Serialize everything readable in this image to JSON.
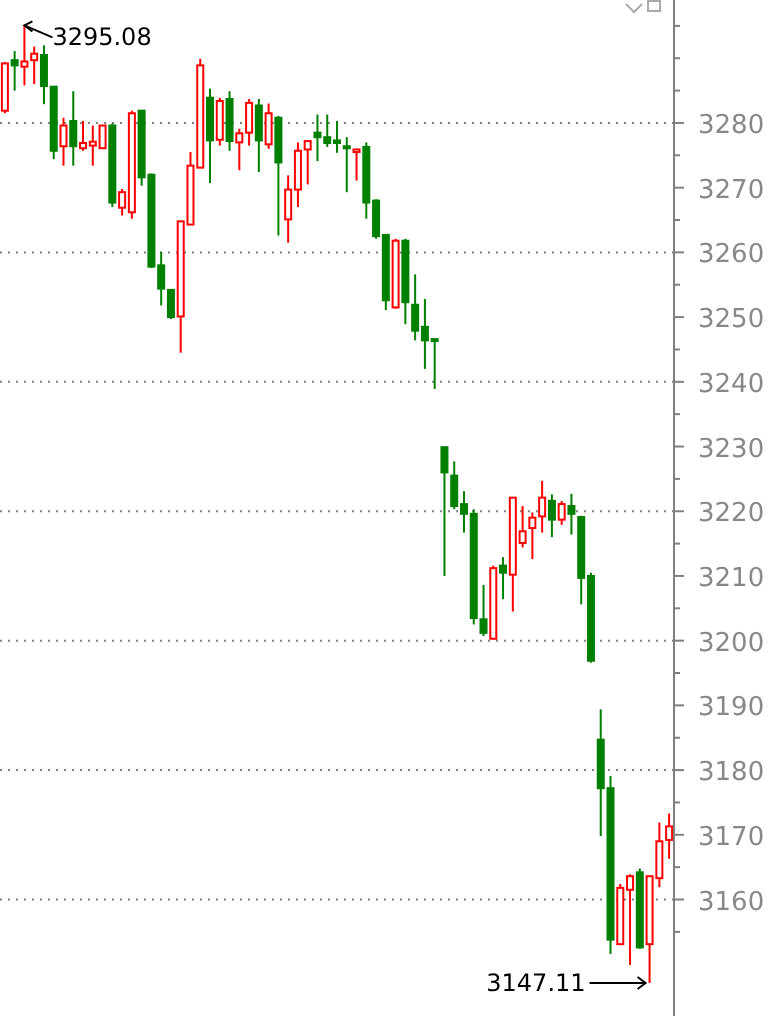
{
  "chart_data": {
    "type": "candlestick",
    "categories": [
      null,
      null,
      null,
      null,
      null,
      null,
      null,
      null,
      null,
      null,
      null,
      null,
      null,
      null,
      null,
      null,
      null,
      null,
      null,
      null,
      null,
      null,
      null,
      null,
      null,
      null,
      null,
      null,
      null,
      null,
      null,
      null,
      null,
      null,
      null,
      null,
      null,
      null,
      null,
      null,
      null,
      null,
      null,
      null,
      null,
      null,
      null,
      null,
      null,
      null,
      null,
      null,
      null,
      null,
      null,
      null,
      null,
      null,
      null,
      null,
      null,
      null,
      null,
      null,
      null,
      null,
      null,
      null,
      null
    ],
    "ohlc": [
      [
        3281.9,
        3289.4,
        3281.5,
        3289.2
      ],
      [
        3289.7,
        3291.1,
        3285.0,
        3288.9
      ],
      [
        3288.7,
        3295.08,
        3285.8,
        3289.5
      ],
      [
        3289.7,
        3291.8,
        3286.0,
        3290.7
      ],
      [
        3290.5,
        3292.0,
        3282.9,
        3285.7
      ],
      [
        3285.6,
        3285.6,
        3274.4,
        3275.7
      ],
      [
        3276.4,
        3280.8,
        3273.4,
        3279.6
      ],
      [
        3280.3,
        3284.9,
        3273.4,
        3276.4
      ],
      [
        3276.1,
        3280.3,
        3275.7,
        3276.9
      ],
      [
        3276.5,
        3279.6,
        3273.4,
        3277.1
      ],
      [
        3276.1,
        3279.6,
        3276.1,
        3279.6
      ],
      [
        3279.6,
        3279.9,
        3267.0,
        3267.7
      ],
      [
        3266.9,
        3269.8,
        3265.7,
        3269.3
      ],
      [
        3266.2,
        3281.9,
        3265.2,
        3281.5
      ],
      [
        3281.9,
        3281.9,
        3270.3,
        3271.6
      ],
      [
        3272.0,
        3272.2,
        3257.6,
        3257.8
      ],
      [
        3258.0,
        3260.1,
        3251.8,
        3254.4
      ],
      [
        3254.2,
        3254.2,
        3249.7,
        3250.0
      ],
      [
        3250.1,
        3264.8,
        3244.5,
        3264.8
      ],
      [
        3264.3,
        3275.5,
        3264.3,
        3273.4
      ],
      [
        3273.1,
        3289.9,
        3273.1,
        3288.9
      ],
      [
        3283.9,
        3285.3,
        3270.7,
        3277.3
      ],
      [
        3277.4,
        3283.9,
        3276.5,
        3283.4
      ],
      [
        3283.7,
        3284.9,
        3275.7,
        3277.2
      ],
      [
        3277.0,
        3279.1,
        3272.7,
        3278.4
      ],
      [
        3278.5,
        3283.7,
        3276.5,
        3283.1
      ],
      [
        3282.7,
        3283.7,
        3272.4,
        3277.3
      ],
      [
        3276.7,
        3283.0,
        3276.0,
        3281.5
      ],
      [
        3280.8,
        3281.1,
        3262.6,
        3273.9
      ],
      [
        3265.1,
        3271.9,
        3261.5,
        3269.7
      ],
      [
        3269.7,
        3277.0,
        3267.0,
        3275.7
      ],
      [
        3275.9,
        3277.2,
        3270.5,
        3277.2
      ],
      [
        3278.5,
        3281.3,
        3274.1,
        3277.8
      ],
      [
        3277.8,
        3281.3,
        3276.3,
        3276.9
      ],
      [
        3277.3,
        3280.3,
        3275.4,
        3276.9
      ],
      [
        3276.4,
        3277.8,
        3269.3,
        3276.1
      ],
      [
        3275.5,
        3275.9,
        3271.1,
        3275.9
      ],
      [
        3276.3,
        3277.0,
        3265.2,
        3267.7
      ],
      [
        3268.0,
        3268.2,
        3262.1,
        3262.5
      ],
      [
        3262.7,
        3262.7,
        3251.1,
        3252.6
      ],
      [
        3251.5,
        3262.1,
        3251.3,
        3261.8
      ],
      [
        3261.8,
        3262.1,
        3248.9,
        3252.3
      ],
      [
        3251.9,
        3256.6,
        3246.4,
        3247.9
      ],
      [
        3248.5,
        3252.8,
        3242.0,
        3246.4
      ],
      [
        3246.6,
        3246.6,
        3238.9,
        3246.4
      ],
      [
        3229.9,
        3229.9,
        3210.0,
        3226.0
      ],
      [
        3225.5,
        3227.7,
        3220.3,
        3220.8
      ],
      [
        3221.1,
        3223.1,
        3216.7,
        3219.6
      ],
      [
        3219.6,
        3220.3,
        3202.5,
        3203.5
      ],
      [
        3203.3,
        3208.6,
        3200.7,
        3201.2
      ],
      [
        3200.3,
        3211.6,
        3200.2,
        3211.2
      ],
      [
        3211.6,
        3212.9,
        3206.4,
        3210.5
      ],
      [
        3210.2,
        3222.1,
        3204.5,
        3222.1
      ],
      [
        3215.1,
        3220.8,
        3214.4,
        3216.9
      ],
      [
        3217.4,
        3219.8,
        3212.6,
        3219.0
      ],
      [
        3219.2,
        3224.7,
        3216.7,
        3222.1
      ],
      [
        3221.6,
        3222.6,
        3216.0,
        3218.7
      ],
      [
        3218.7,
        3221.6,
        3217.9,
        3221.1
      ],
      [
        3220.8,
        3222.7,
        3216.4,
        3219.6
      ],
      [
        3219.1,
        3219.3,
        3205.6,
        3209.7
      ],
      [
        3210.0,
        3210.5,
        3196.6,
        3196.9
      ],
      [
        3184.7,
        3189.4,
        3169.8,
        3177.2
      ],
      [
        3177.2,
        3179.1,
        3151.6,
        3153.8
      ],
      [
        3153.1,
        3162.4,
        3153.1,
        3161.8
      ],
      [
        3161.5,
        3163.9,
        3149.9,
        3163.6
      ],
      [
        3164.2,
        3164.8,
        3152.4,
        3152.6
      ],
      [
        3153.1,
        3163.6,
        3147.11,
        3163.6
      ],
      [
        3163.3,
        3171.9,
        3161.9,
        3169.0
      ],
      [
        3169.2,
        3173.3,
        3166.3,
        3171.3
      ]
    ],
    "ylim": [
      3142,
      3299
    ],
    "yticks": [
      {
        "value": 3155,
        "label": null
      },
      3160,
      {
        "value": 3165,
        "label": null
      },
      3170,
      {
        "value": 3175,
        "label": null
      },
      3180,
      {
        "value": 3185,
        "label": null
      },
      3190,
      {
        "value": 3195,
        "label": null
      },
      3200,
      {
        "value": 3205,
        "label": null
      },
      3210,
      {
        "value": 3215,
        "label": null
      },
      3220,
      {
        "value": 3225,
        "label": null
      },
      3230,
      {
        "value": 3235,
        "label": null
      },
      3240,
      {
        "value": 3245,
        "label": null
      },
      3250,
      {
        "value": 3255,
        "label": null
      },
      3260,
      {
        "value": 3265,
        "label": null
      },
      3270,
      {
        "value": 3275,
        "label": null
      },
      3280,
      {
        "value": 3285,
        "label": null
      },
      {
        "value": 3290,
        "label": null
      },
      {
        "value": 3295,
        "label": null
      }
    ],
    "tick_labels": "y",
    "ref_lines": [
      {
        "axis": "y",
        "value": 3160,
        "line_style": "dotted",
        "color": "#808080"
      },
      {
        "axis": "y",
        "value": 3180,
        "line_style": "dotted",
        "color": "#808080"
      },
      {
        "axis": "y",
        "value": 3200,
        "line_style": "dotted",
        "color": "#808080"
      },
      {
        "axis": "y",
        "value": 3220,
        "line_style": "dotted",
        "color": "#808080"
      },
      {
        "axis": "y",
        "value": 3240,
        "line_style": "dotted",
        "color": "#808080"
      },
      {
        "axis": "y",
        "value": 3260,
        "line_style": "dotted",
        "color": "#808080"
      },
      {
        "axis": "y",
        "value": 3280,
        "line_style": "dotted",
        "color": "#808080"
      }
    ],
    "annotations": [
      "3295.08",
      "3147.11"
    ]
  }
}
